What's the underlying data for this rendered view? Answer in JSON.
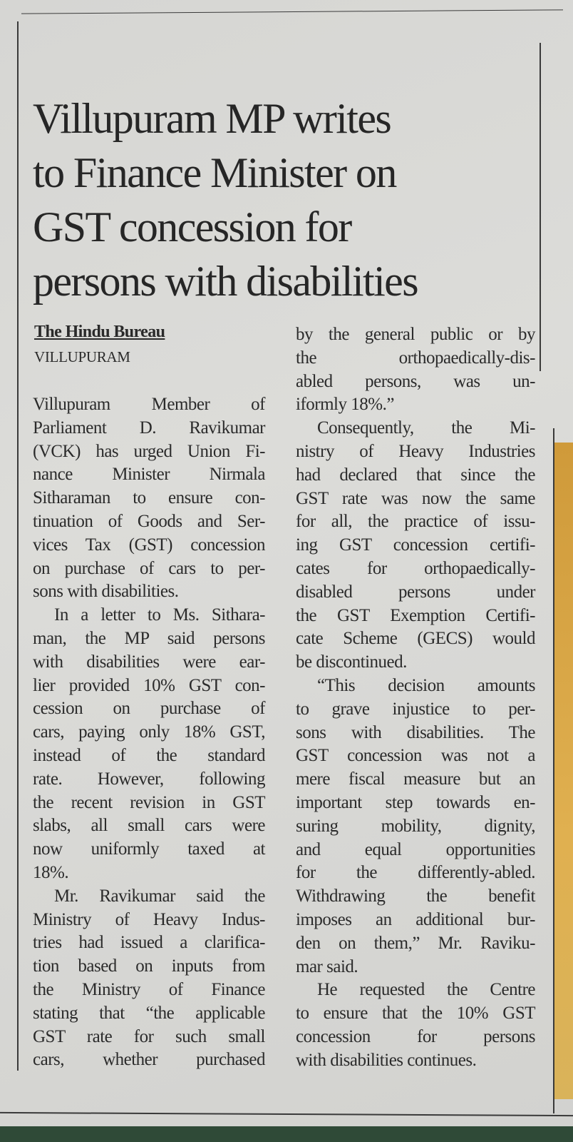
{
  "headline": [
    "Villupuram MP writes",
    "to Finance Minister on",
    "GST concession for",
    "persons with disabilities"
  ],
  "byline": "The Hindu Bureau",
  "dateline": "VILLUPURAM",
  "columns": [
    [
      {
        "lines": [
          "Villupuram Member of",
          "Parliament D. Ravikumar",
          "(VCK) has urged Union Fi-",
          "nance Minister Nirmala",
          "Sitharaman to ensure con-",
          "tinuation of Goods and Ser-",
          "vices Tax (GST) concession",
          "on purchase of cars to per-",
          "sons with disabilities."
        ],
        "indent": false,
        "ends": true
      },
      {
        "lines": [
          "In a letter to Ms. Sithara-",
          "man, the MP said persons",
          "with disabilities were ear-",
          "lier provided 10% GST con-",
          "cession on purchase of",
          "cars, paying only 18% GST,",
          "instead of the standard",
          "rate. However, following",
          "the recent revision in GST",
          "slabs, all small cars were",
          "now uniformly taxed at",
          "18%."
        ],
        "indent": true,
        "ends": true
      },
      {
        "lines": [
          "Mr. Ravikumar said the",
          "Ministry of Heavy Indus-",
          "tries had issued a clarifica-",
          "tion based on inputs from",
          "the Ministry of Finance",
          "stating that “the applicable",
          "GST rate for such small",
          "cars, whether purchased"
        ],
        "indent": true,
        "ends": false
      }
    ],
    [
      {
        "lines": [
          "by the general public or by",
          "the orthopaedically-dis-",
          "abled persons, was un-",
          "iformly 18%.”"
        ],
        "indent": false,
        "ends": true
      },
      {
        "lines": [
          "Consequently, the Mi-",
          "nistry of Heavy Industries",
          "had declared that since the",
          "GST rate was now the same",
          "for all, the practice of issu-",
          "ing GST concession certifi-",
          "cates for orthopaedically-",
          "disabled persons under",
          "the GST Exemption Certifi-",
          "cate Scheme (GECS) would",
          "be discontinued."
        ],
        "indent": true,
        "ends": true
      },
      {
        "lines": [
          "“This decision amounts",
          "to grave injustice to per-",
          "sons with disabilities. The",
          "GST concession was not a",
          "mere fiscal measure but an",
          "important step towards en-",
          "suring mobility, dignity,",
          "and equal opportunities",
          "for the differently-abled.",
          "Withdrawing the benefit",
          "imposes an additional bur-",
          "den on them,” Mr. Raviku-",
          "mar said."
        ],
        "indent": true,
        "ends": true
      },
      {
        "lines": [
          "He requested the Centre",
          "to ensure that the 10% GST",
          "concession for persons",
          "with disabilities continues."
        ],
        "indent": true,
        "ends": true
      }
    ]
  ]
}
